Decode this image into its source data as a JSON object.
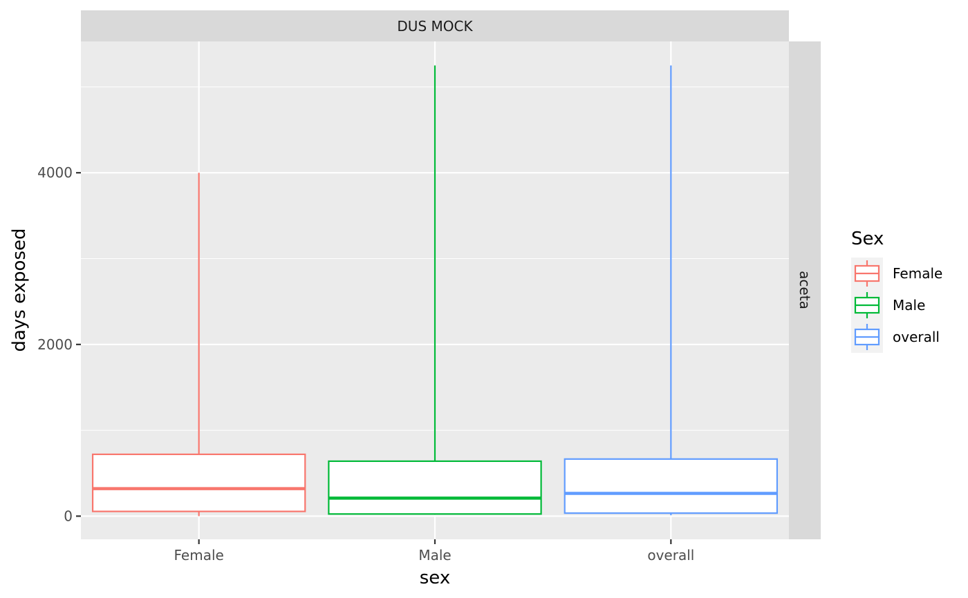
{
  "chart_data": {
    "type": "boxplot",
    "facet_top": "DUS MOCK",
    "facet_right": "aceta",
    "xlabel": "sex",
    "ylabel": "days exposed",
    "categories": [
      "Female",
      "Male",
      "overall"
    ],
    "yticks": [
      0,
      2000,
      4000
    ],
    "ylim": [
      -270,
      5530
    ],
    "grid": true,
    "legend": {
      "title": "Sex",
      "position": "right",
      "entries": [
        "Female",
        "Male",
        "overall"
      ]
    },
    "colors": {
      "Female": "#F8766D",
      "Male": "#00BA38",
      "overall": "#619CFF"
    },
    "series": [
      {
        "name": "Female",
        "min": 0,
        "q1": 55,
        "median": 320,
        "q3": 720,
        "max": 4000
      },
      {
        "name": "Male",
        "min": 15,
        "q1": 25,
        "median": 210,
        "q3": 640,
        "max": 5250
      },
      {
        "name": "overall",
        "min": 10,
        "q1": 35,
        "median": 265,
        "q3": 665,
        "max": 5250
      }
    ]
  }
}
